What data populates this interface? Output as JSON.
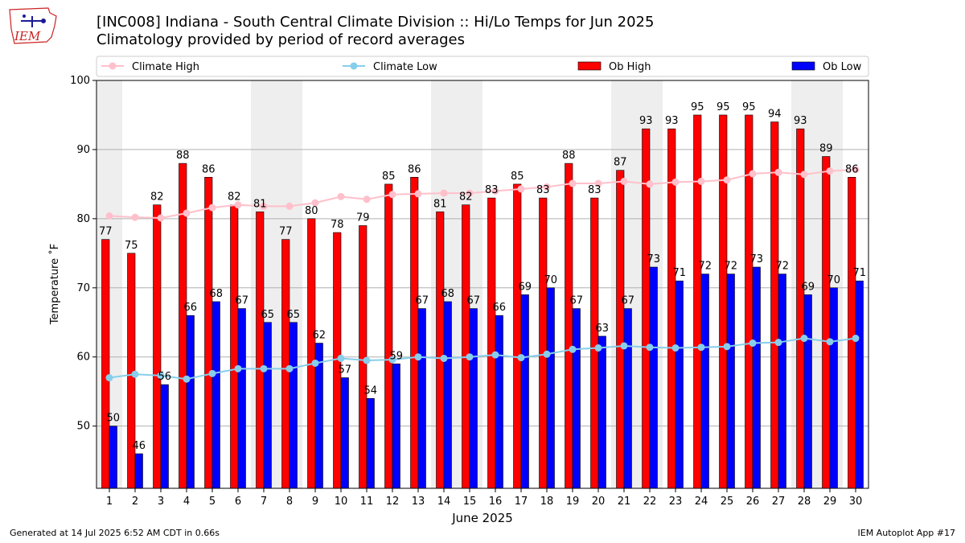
{
  "header": {
    "title": "[INC008] Indiana - South Central Climate Division :: Hi/Lo Temps for Jun 2025",
    "subtitle": "Climatology provided by period of record averages",
    "logo_text": "IEM"
  },
  "footer": {
    "generated": "Generated at 14 Jul 2025 6:52 AM CDT in 0.66s",
    "app": "IEM Autoplot App #17"
  },
  "colors": {
    "ob_high": "#ff0000",
    "ob_low": "#0000ff",
    "climate_high": "#ffc0cb",
    "climate_low": "#87ceeb",
    "weekend_shade": "#eeeeee",
    "grid": "#b0b0b0"
  },
  "chart_data": {
    "type": "bar",
    "title": "[INC008] Indiana - South Central Climate Division :: Hi/Lo Temps for Jun 2025",
    "subtitle": "Climatology provided by period of record averages",
    "xlabel": "June 2025",
    "ylabel": "Temperature ˚F",
    "ylim": [
      41,
      100
    ],
    "yticks": [
      50,
      60,
      70,
      80,
      90,
      100
    ],
    "grid": true,
    "legend_position": "top",
    "shaded_days": [
      1,
      7,
      8,
      14,
      15,
      21,
      22,
      28,
      29
    ],
    "categories": [
      "1",
      "2",
      "3",
      "4",
      "5",
      "6",
      "7",
      "8",
      "9",
      "10",
      "11",
      "12",
      "13",
      "14",
      "15",
      "16",
      "17",
      "18",
      "19",
      "20",
      "21",
      "22",
      "23",
      "24",
      "25",
      "26",
      "27",
      "28",
      "29",
      "30"
    ],
    "series": [
      {
        "name": "Ob High",
        "kind": "bar",
        "values": [
          77,
          75,
          82,
          88,
          86,
          82,
          81,
          77,
          80,
          78,
          79,
          85,
          86,
          81,
          82,
          83,
          85,
          83,
          88,
          83,
          87,
          93,
          93,
          95,
          95,
          95,
          94,
          93,
          89,
          86
        ]
      },
      {
        "name": "Ob Low",
        "kind": "bar",
        "values": [
          50,
          46,
          56,
          66,
          68,
          67,
          65,
          65,
          62,
          57,
          54,
          59,
          67,
          68,
          67,
          66,
          69,
          70,
          67,
          63,
          67,
          73,
          71,
          72,
          72,
          73,
          72,
          69,
          70,
          71
        ]
      },
      {
        "name": "Climate High",
        "kind": "line",
        "values": [
          80.4,
          80.2,
          80.1,
          80.8,
          81.6,
          82.0,
          81.8,
          81.8,
          82.3,
          83.2,
          82.8,
          83.5,
          83.6,
          83.7,
          83.7,
          84.0,
          84.3,
          84.6,
          85.1,
          85.1,
          85.4,
          85.0,
          85.3,
          85.4,
          85.6,
          86.5,
          86.7,
          86.4,
          86.9,
          87.1
        ]
      },
      {
        "name": "Climate Low",
        "kind": "line",
        "values": [
          57.0,
          57.5,
          57.3,
          56.8,
          57.6,
          58.3,
          58.3,
          58.3,
          59.1,
          59.8,
          59.5,
          59.6,
          60.0,
          59.8,
          60.0,
          60.3,
          59.9,
          60.4,
          61.1,
          61.3,
          61.6,
          61.4,
          61.3,
          61.4,
          61.5,
          62.0,
          62.1,
          62.7,
          62.2,
          62.7
        ]
      }
    ]
  }
}
